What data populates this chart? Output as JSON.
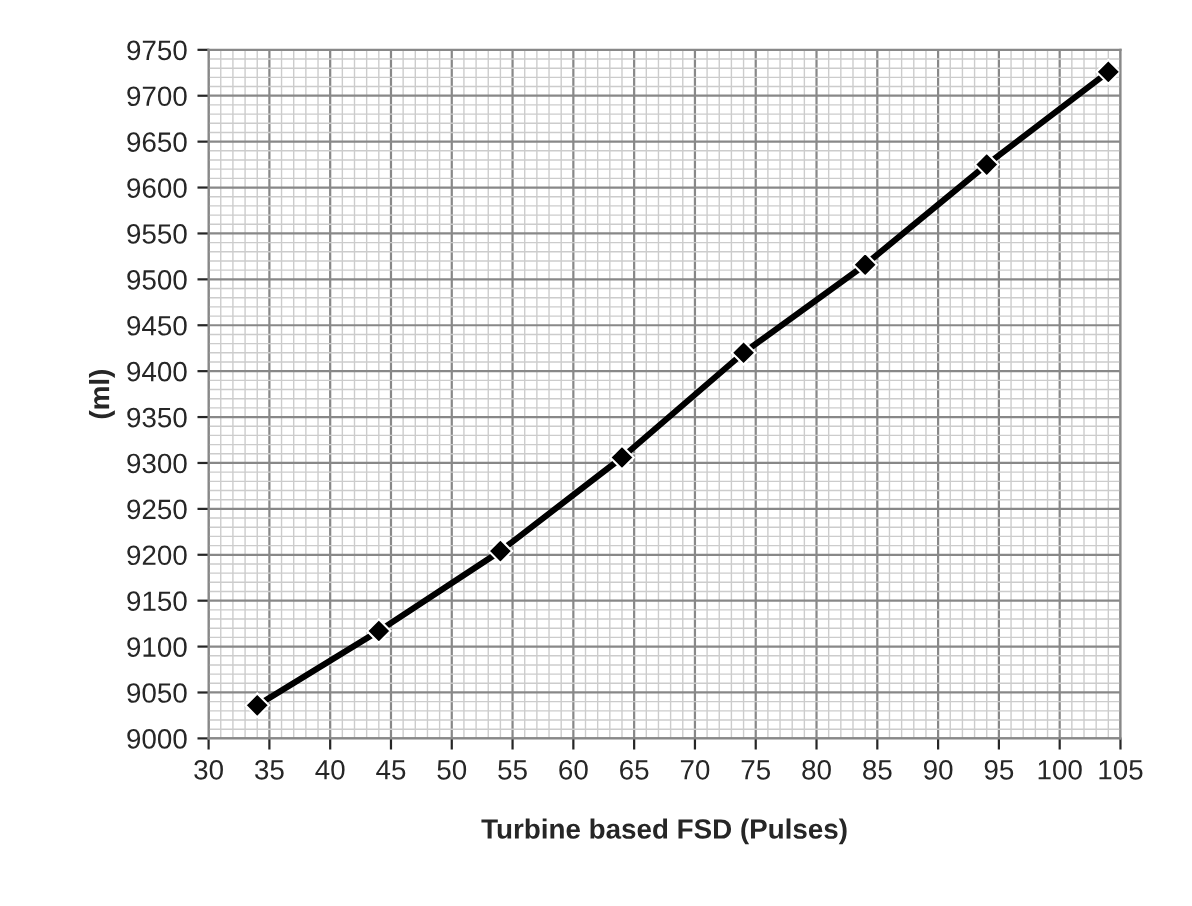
{
  "chart_data": {
    "type": "line",
    "xlabel": "Turbine based FSD (Pulses)",
    "ylabel": "(ml)",
    "x": [
      34,
      44,
      54,
      64,
      74,
      84,
      94,
      104
    ],
    "series": [
      {
        "color": "#000000",
        "values": [
          9036,
          9117,
          9204,
          9306,
          9420,
          9516,
          9625,
          9726
        ]
      }
    ],
    "xlim": [
      30,
      105
    ],
    "xticks": [
      30,
      35,
      40,
      45,
      50,
      55,
      60,
      65,
      70,
      75,
      80,
      85,
      90,
      95,
      100,
      105
    ],
    "ylim": [
      9000,
      9750
    ],
    "yticks": [
      9000,
      9050,
      9100,
      9150,
      9200,
      9250,
      9300,
      9350,
      9400,
      9450,
      9500,
      9550,
      9600,
      9650,
      9700,
      9750
    ],
    "grid": true,
    "marker": "diamond",
    "line_style": "solid",
    "legend": false
  }
}
